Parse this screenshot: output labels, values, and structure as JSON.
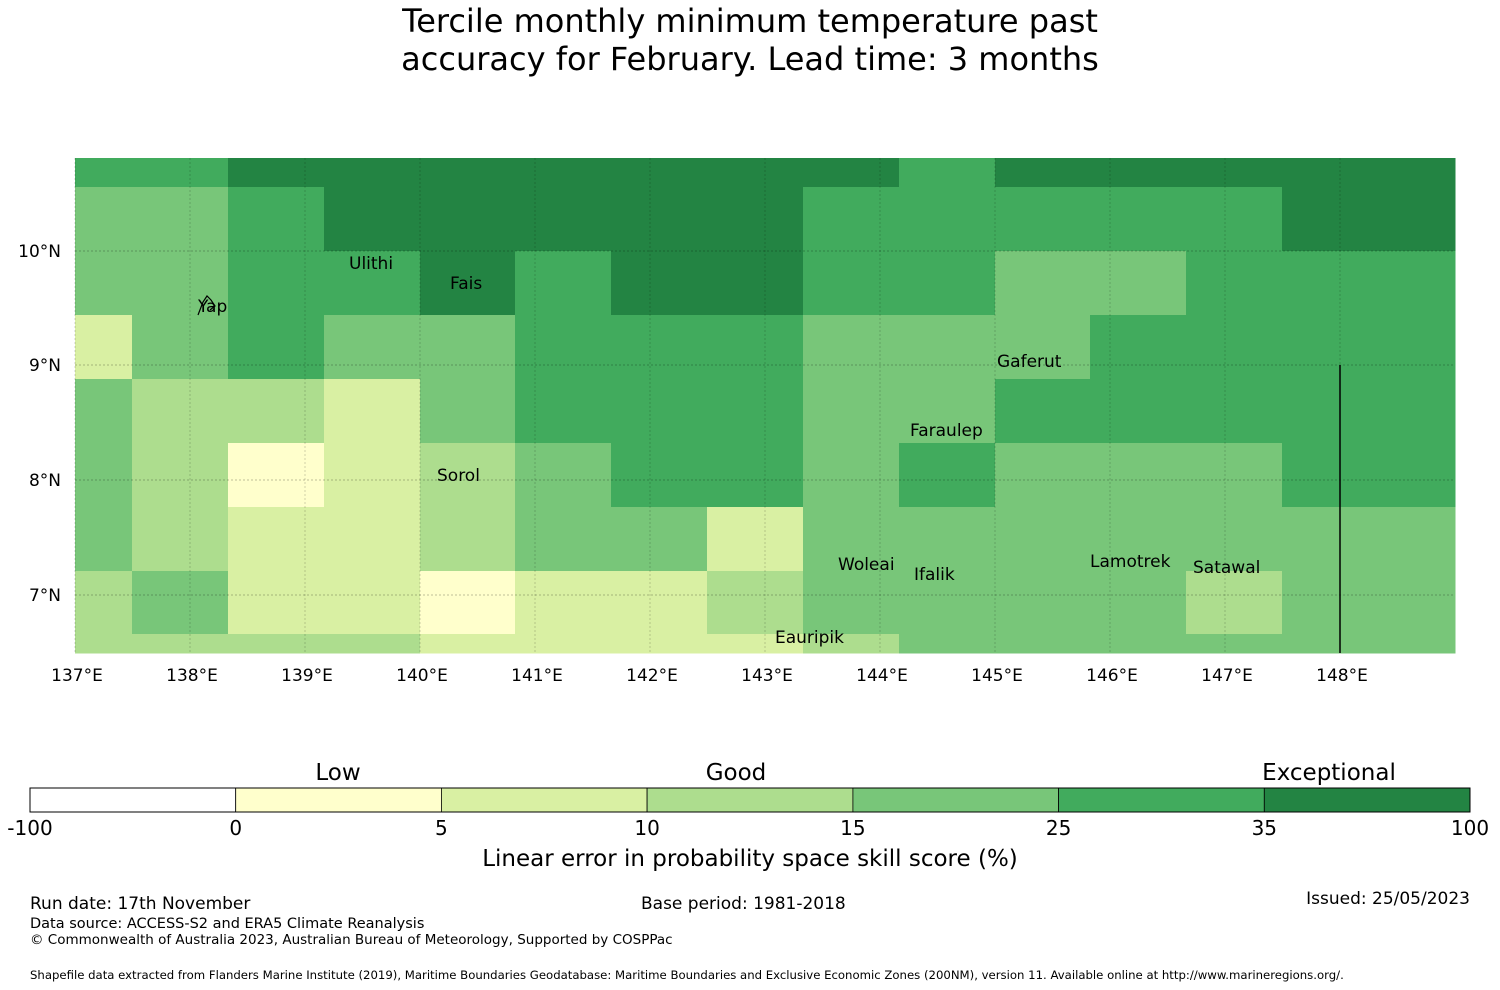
{
  "title_line1": "Tercile monthly minimum temperature past",
  "title_line2": "accuracy for February. Lead time: 3 months",
  "map": {
    "lat_labels": [
      "10°N",
      "9°N",
      "8°N",
      "7°N"
    ],
    "lon_labels": [
      "137°E",
      "138°E",
      "139°E",
      "140°E",
      "141°E",
      "142°E",
      "143°E",
      "144°E",
      "145°E",
      "146°E",
      "147°E",
      "148°E"
    ],
    "place_names": [
      "Ulithi",
      "Fais",
      "Yap",
      "Gaferut",
      "Faraulep",
      "Sorol",
      "Woleai",
      "Ifalik",
      "Lamotrek",
      "Satawal",
      "Eauripik"
    ],
    "grid_rows": [
      [
        5,
        5,
        6,
        6,
        6,
        6,
        6,
        6,
        6,
        5,
        6,
        6,
        6,
        6
      ],
      [
        4,
        4,
        5,
        6,
        6,
        6,
        6,
        6,
        5,
        5,
        5,
        5,
        5,
        6
      ],
      [
        4,
        4,
        5,
        5,
        6,
        5,
        6,
        6,
        5,
        5,
        4,
        4,
        5,
        5
      ],
      [
        2,
        4,
        5,
        4,
        4,
        5,
        5,
        5,
        4,
        4,
        4,
        5,
        5,
        5
      ],
      [
        4,
        3,
        3,
        2,
        4,
        5,
        5,
        5,
        4,
        4,
        5,
        5,
        5,
        5
      ],
      [
        4,
        3,
        1,
        2,
        3,
        4,
        5,
        5,
        4,
        5,
        4,
        4,
        4,
        5
      ],
      [
        4,
        3,
        2,
        2,
        3,
        4,
        4,
        2,
        4,
        4,
        4,
        4,
        4,
        4
      ],
      [
        3,
        4,
        2,
        2,
        1,
        2,
        2,
        3,
        4,
        4,
        4,
        4,
        3,
        4
      ],
      [
        3,
        3,
        3,
        3,
        2,
        2,
        2,
        2,
        3,
        4,
        4,
        4,
        4,
        4
      ]
    ],
    "colors": [
      "#ffffff",
      "#ffffcc",
      "#d9f0a3",
      "#addd8e",
      "#78c679",
      "#41ab5d",
      "#238443"
    ]
  },
  "colorbar": {
    "category_labels": [
      "Low",
      "Good",
      "Exceptional"
    ],
    "tick_labels": [
      "-100",
      "0",
      "5",
      "10",
      "15",
      "25",
      "35",
      "100"
    ],
    "axis_label": "Linear error in probability space skill score (%)"
  },
  "footer": {
    "run_date": "Run date: 17th November",
    "base_period": "Base period: 1981-2018",
    "issued": "Issued: 25/05/2023",
    "data_source": "Data source: ACCESS-S2 and ERA5 Climate Reanalysis",
    "copyright": "© Commonwealth of Australia 2023, Australian Bureau of Meteorology, Supported by COSPPac",
    "shapefile": "Shapefile data extracted from Flanders Marine Institute (2019), Maritime Boundaries Geodatabase: Maritime Boundaries and Exclusive Economic Zones (200NM), version 11. Available online at http://www.marineregions.org/."
  }
}
